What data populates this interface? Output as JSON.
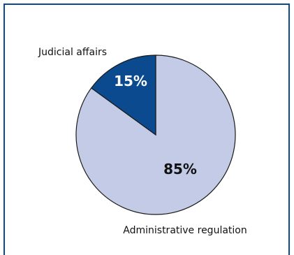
{
  "chart_data": {
    "type": "pie",
    "slices": [
      {
        "label": "Administrative regulation",
        "value": 85,
        "value_label": "85%",
        "color": "#c3cbe7"
      },
      {
        "label": "Judicial affairs",
        "value": 15,
        "value_label": "15%",
        "color": "#0b4a8e"
      }
    ],
    "start_slice": "Judicial affairs",
    "direction": "counterclockwise-from-top",
    "legend": "none",
    "border_color": "#0b4a8e",
    "slice_edge_color": "#1a1a1a",
    "inner_label_colors": [
      "#111111",
      "#ffffff"
    ]
  }
}
